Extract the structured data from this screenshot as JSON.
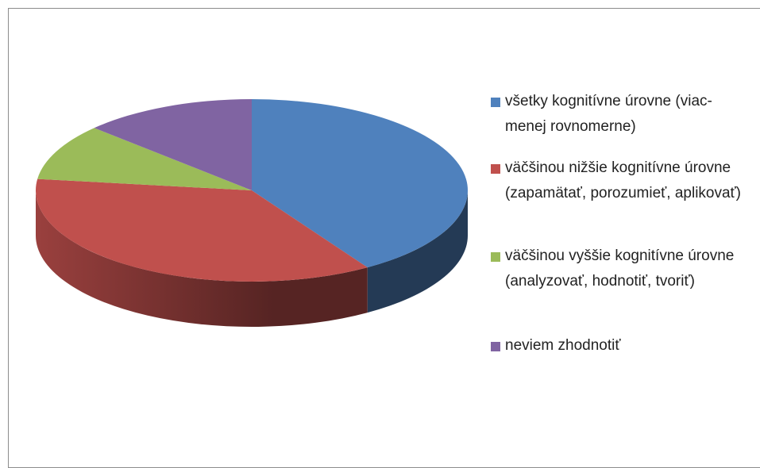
{
  "chart_data": {
    "type": "pie3d",
    "categories": [
      "všetky kognitívne úrovne (viac-menej rovnomerne)",
      "väčšinou nižšie kognitívne úrovne (zapamätať, porozumieť, aplikovať)",
      "väčšinou vyššie kognitívne úrovne (analyzovať, hodnotiť, tvoriť)",
      "neviem zhodnotiť"
    ],
    "values": [
      41,
      36,
      10,
      13
    ],
    "colors": [
      "#4f81bd",
      "#c0504d",
      "#9bbb59",
      "#8064a2"
    ],
    "legend": "right"
  }
}
